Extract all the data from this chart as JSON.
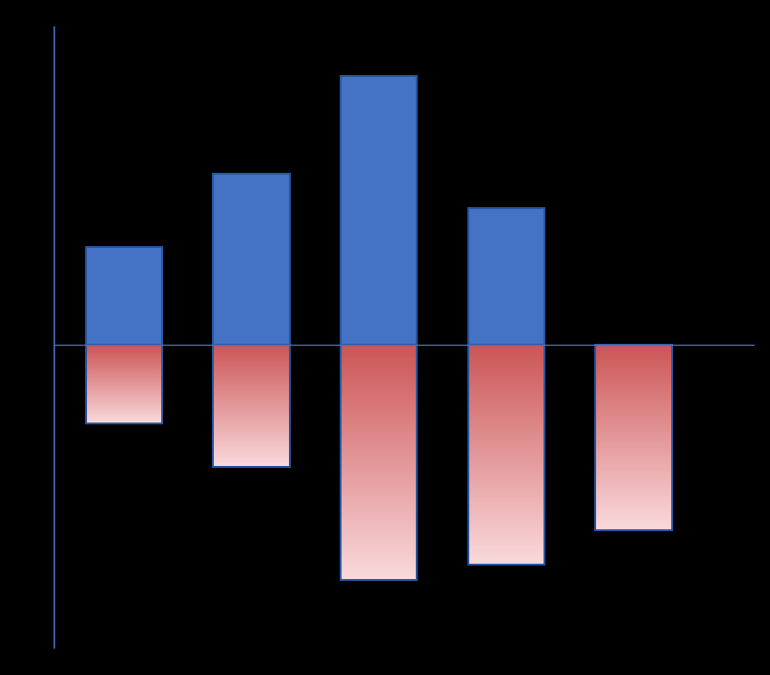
{
  "background_color": "#000000",
  "axis_color": "#4472C4",
  "bar_positions": [
    1,
    2,
    3,
    4,
    5
  ],
  "bar_width": 0.6,
  "positive_values": [
    2.0,
    3.5,
    5.5,
    2.8,
    0.0
  ],
  "negative_values": [
    -1.6,
    -2.5,
    -4.8,
    -4.5,
    -3.8
  ],
  "blue_fill": "#4472C4",
  "blue_edge": "#2855A0",
  "pink_top": "#CC5555",
  "pink_bottom": "#FADADD",
  "ylim": [
    -6.2,
    6.5
  ],
  "xlim": [
    0.45,
    5.95
  ],
  "figsize": [
    8.5,
    7.46
  ],
  "dpi": 100
}
